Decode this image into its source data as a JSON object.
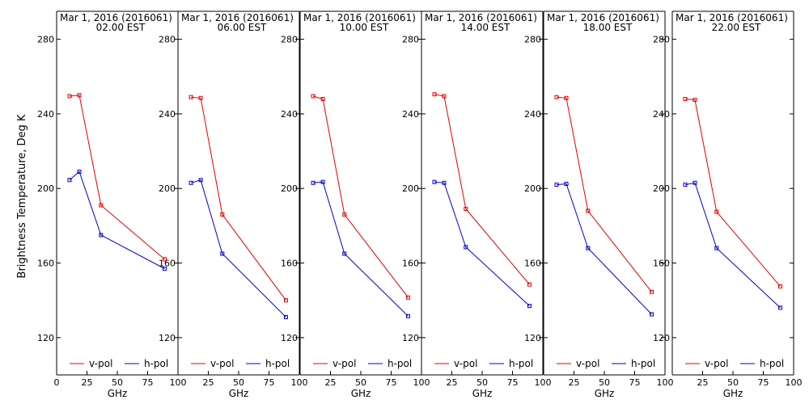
{
  "chart_data": {
    "type": "line",
    "ylabel": "Brightness Temperature, Deg K",
    "xlabel": "GHz",
    "ylim": [
      100,
      295
    ],
    "xlim": [
      0,
      100
    ],
    "yticks": [
      120,
      160,
      200,
      240,
      280
    ],
    "xticks": [
      0,
      25,
      50,
      75,
      100
    ],
    "x": [
      10.7,
      18.7,
      36.5,
      89.0
    ],
    "legend": [
      "v-pol",
      "h-pol"
    ],
    "colors": {
      "v-pol": "#e00000",
      "h-pol": "#0000c8"
    },
    "panels": [
      {
        "title_line1": "Mar  1, 2016 (2016061)",
        "title_line2": "02.00 EST",
        "series": [
          {
            "name": "v-pol",
            "values": [
              249.5,
              250.0,
              191.0,
              162.0
            ]
          },
          {
            "name": "h-pol",
            "values": [
              204.5,
              209.0,
              175.0,
              157.0
            ]
          }
        ]
      },
      {
        "title_line1": "Mar  1, 2016 (2016061)",
        "title_line2": "06.00 EST",
        "series": [
          {
            "name": "v-pol",
            "values": [
              249.0,
              248.5,
              186.0,
              140.0
            ]
          },
          {
            "name": "h-pol",
            "values": [
              203.0,
              204.5,
              165.0,
              131.0
            ]
          }
        ]
      },
      {
        "title_line1": "Mar  1, 2016 (2016061)",
        "title_line2": "10.00 EST",
        "series": [
          {
            "name": "v-pol",
            "values": [
              249.5,
              248.0,
              186.0,
              141.5
            ]
          },
          {
            "name": "h-pol",
            "values": [
              203.0,
              203.5,
              165.0,
              131.5
            ]
          }
        ]
      },
      {
        "title_line1": "Mar  1, 2016 (2016061)",
        "title_line2": "14.00 EST",
        "series": [
          {
            "name": "v-pol",
            "values": [
              250.5,
              249.5,
              189.0,
              148.5
            ]
          },
          {
            "name": "h-pol",
            "values": [
              203.5,
              203.0,
              168.5,
              137.0
            ]
          }
        ]
      },
      {
        "title_line1": "Mar  1, 2016 (2016061)",
        "title_line2": "18.00 EST",
        "series": [
          {
            "name": "v-pol",
            "values": [
              249.0,
              248.5,
              188.0,
              144.5
            ]
          },
          {
            "name": "h-pol",
            "values": [
              202.0,
              202.5,
              168.0,
              132.5
            ]
          }
        ]
      },
      {
        "title_line1": "Mar  1, 2016 (2016061)",
        "title_line2": "22.00 EST",
        "series": [
          {
            "name": "v-pol",
            "values": [
              248.0,
              247.5,
              187.5,
              147.5
            ]
          },
          {
            "name": "h-pol",
            "values": [
              202.0,
              203.0,
              168.0,
              136.0
            ]
          }
        ]
      }
    ]
  }
}
